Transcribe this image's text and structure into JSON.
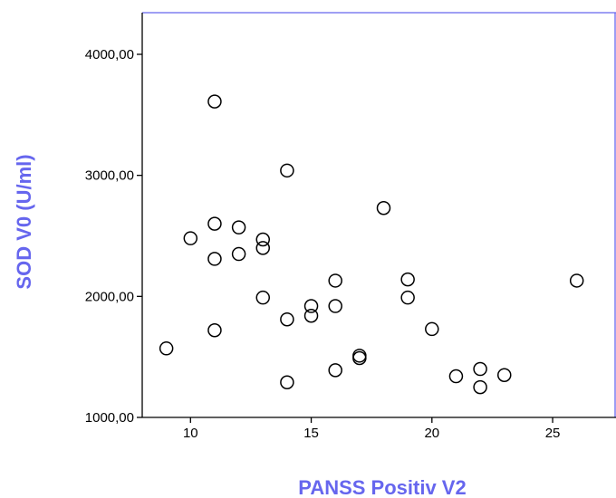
{
  "chart_data": {
    "type": "scatter",
    "xlabel": "PANSS Positiv V2",
    "ylabel": "SOD V0 (U/ml)",
    "xlim": [
      8,
      28
    ],
    "ylim": [
      1000,
      4000
    ],
    "x_ticks": [
      10,
      15,
      20,
      25
    ],
    "x_tick_labels": [
      "10",
      "15",
      "20",
      "25"
    ],
    "y_ticks": [
      1000,
      2000,
      3000,
      4000
    ],
    "y_tick_labels": [
      "1000,00",
      "2000,00",
      "3000,00",
      "4000,00"
    ],
    "grid": false,
    "marker": "open-circle",
    "points": [
      {
        "x": 9,
        "y": 1570
      },
      {
        "x": 10,
        "y": 2480
      },
      {
        "x": 11,
        "y": 3610
      },
      {
        "x": 11,
        "y": 2600
      },
      {
        "x": 11,
        "y": 2310
      },
      {
        "x": 11,
        "y": 1720
      },
      {
        "x": 12,
        "y": 2570
      },
      {
        "x": 12,
        "y": 2350
      },
      {
        "x": 13,
        "y": 2470
      },
      {
        "x": 13,
        "y": 2400
      },
      {
        "x": 13,
        "y": 1990
      },
      {
        "x": 14,
        "y": 3040
      },
      {
        "x": 14,
        "y": 1810
      },
      {
        "x": 14,
        "y": 1290
      },
      {
        "x": 15,
        "y": 1920
      },
      {
        "x": 15,
        "y": 1840
      },
      {
        "x": 16,
        "y": 2130
      },
      {
        "x": 16,
        "y": 1920
      },
      {
        "x": 16,
        "y": 1390
      },
      {
        "x": 17,
        "y": 1510
      },
      {
        "x": 17,
        "y": 1490
      },
      {
        "x": 18,
        "y": 2730
      },
      {
        "x": 19,
        "y": 2140
      },
      {
        "x": 19,
        "y": 1990
      },
      {
        "x": 20,
        "y": 1730
      },
      {
        "x": 21,
        "y": 1340
      },
      {
        "x": 22,
        "y": 1400
      },
      {
        "x": 22,
        "y": 1250
      },
      {
        "x": 23,
        "y": 1350
      },
      {
        "x": 26,
        "y": 2130
      }
    ]
  },
  "colors": {
    "axis_title": "#6666ee",
    "frame": "#6666ee",
    "axis": "#000000",
    "marker": "#000000"
  }
}
